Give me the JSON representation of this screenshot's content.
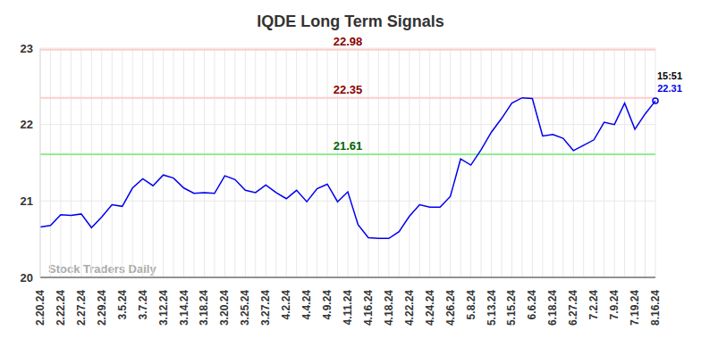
{
  "chart_data": {
    "type": "line",
    "title": "IQDE Long Term Signals",
    "watermark": "Stock Traders Daily",
    "categories": [
      "2.20.24",
      null,
      "2.22.24",
      null,
      "2.27.24",
      null,
      "2.29.24",
      null,
      "3.5.24",
      null,
      "3.7.24",
      null,
      "3.12.24",
      null,
      "3.14.24",
      null,
      "3.18.24",
      null,
      "3.20.24",
      null,
      "3.25.24",
      null,
      "3.27.24",
      null,
      "4.2.24",
      null,
      "4.4.24",
      null,
      "4.9.24",
      null,
      "4.11.24",
      null,
      "4.16.24",
      null,
      "4.18.24",
      null,
      "4.22.24",
      null,
      "4.24.24",
      null,
      "4.26.24",
      null,
      "5.8.24",
      null,
      "5.13.24",
      null,
      "5.15.24",
      null,
      "6.6.24",
      null,
      "6.18.24",
      null,
      "6.27.24",
      null,
      "7.2.24",
      null,
      "7.9.24",
      null,
      "7.19.24",
      null,
      "8.16.24"
    ],
    "values": [
      20.66,
      20.68,
      20.82,
      20.81,
      20.83,
      20.65,
      20.79,
      20.95,
      20.93,
      21.17,
      21.29,
      21.2,
      21.34,
      21.3,
      21.17,
      21.1,
      21.11,
      21.1,
      21.33,
      21.28,
      21.14,
      21.11,
      21.21,
      21.11,
      21.03,
      21.14,
      20.99,
      21.16,
      21.22,
      20.99,
      21.12,
      20.69,
      20.52,
      20.51,
      20.51,
      20.6,
      20.8,
      20.95,
      20.92,
      20.92,
      21.06,
      21.55,
      21.47,
      21.67,
      21.9,
      22.08,
      22.28,
      22.35,
      22.34,
      21.85,
      21.87,
      21.82,
      21.66,
      21.73,
      21.8,
      22.03,
      22.0,
      22.28,
      21.94,
      22.14,
      22.31
    ],
    "color": "#0000ee",
    "ylim": [
      20,
      23
    ],
    "yticks": [
      20,
      21,
      22,
      23
    ],
    "grid": true,
    "reference_lines": [
      {
        "value": 22.98,
        "label": "22.98",
        "color": "#ffcccc",
        "label_color": "#8b0000"
      },
      {
        "value": 22.35,
        "label": "22.35",
        "color": "#ffcccc",
        "label_color": "#8b0000"
      },
      {
        "value": 21.61,
        "label": "21.61",
        "color": "#90ee90",
        "label_color": "#006400"
      }
    ],
    "annotations": [
      {
        "text": "15:51",
        "color": "#000000"
      },
      {
        "text": "22.31",
        "color": "#0000ee"
      }
    ]
  }
}
